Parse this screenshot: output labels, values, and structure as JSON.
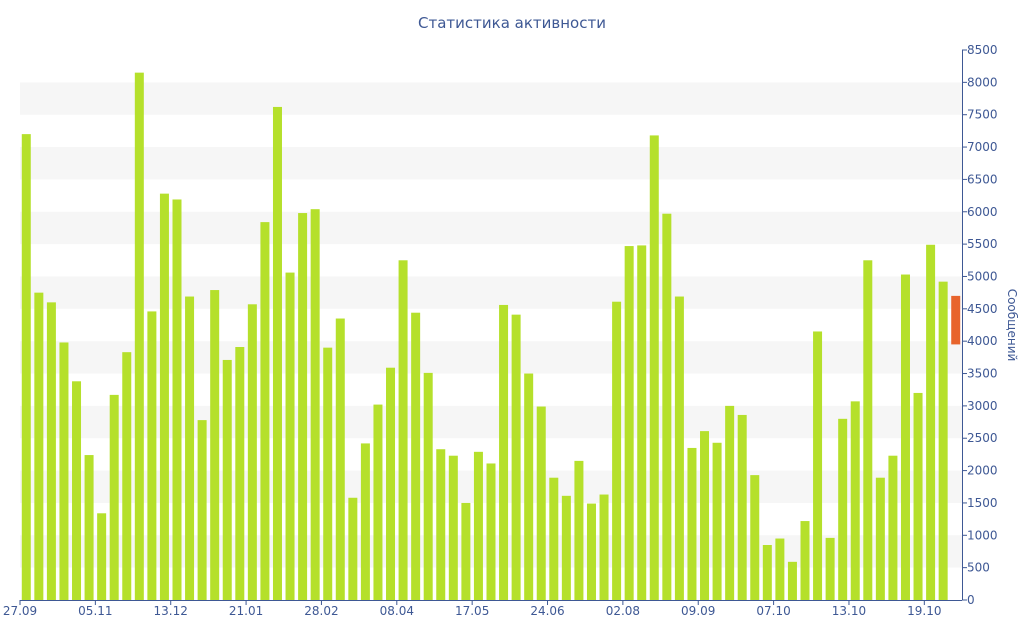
{
  "chart_data": {
    "type": "bar",
    "title": "Статистика активности",
    "ylabel": "Сообщений",
    "xlabel": "",
    "ylim": [
      0,
      8500
    ],
    "y_axis_side": "right",
    "y_ticks": [
      0,
      500,
      1000,
      1500,
      2000,
      2500,
      3000,
      3500,
      4000,
      4500,
      5000,
      5500,
      6000,
      6500,
      7000,
      7500,
      8000,
      8500
    ],
    "grid": "alternating horizontal bands",
    "x_tick_labels": [
      {
        "index": 0,
        "label": "27.09"
      },
      {
        "index": 6,
        "label": "05.11"
      },
      {
        "index": 12,
        "label": "13.12"
      },
      {
        "index": 18,
        "label": "21.01"
      },
      {
        "index": 24,
        "label": "28.02"
      },
      {
        "index": 30,
        "label": "08.04"
      },
      {
        "index": 36,
        "label": "17.05"
      },
      {
        "index": 42,
        "label": "24.06"
      },
      {
        "index": 48,
        "label": "02.08"
      },
      {
        "index": 54,
        "label": "09.09"
      },
      {
        "index": 60,
        "label": "07.10"
      },
      {
        "index": 66,
        "label": "13.10"
      },
      {
        "index": 72,
        "label": "19.10"
      }
    ],
    "values": [
      7200,
      4750,
      4600,
      3980,
      3380,
      2240,
      1340,
      3170,
      3830,
      8150,
      4460,
      6280,
      6190,
      4690,
      2780,
      4790,
      3710,
      3910,
      4570,
      5840,
      7620,
      5060,
      5980,
      6040,
      3900,
      4350,
      1580,
      2420,
      3020,
      3590,
      5250,
      4440,
      3510,
      2330,
      2230,
      1500,
      2290,
      2110,
      4560,
      4410,
      3500,
      2990,
      1890,
      1610,
      2150,
      1490,
      1630,
      4610,
      5470,
      5480,
      7180,
      5970,
      4690,
      2350,
      2610,
      2430,
      3000,
      2860,
      1930,
      850,
      950,
      590,
      1220,
      4150,
      960,
      2800,
      3070,
      5250,
      1890,
      2230,
      5030,
      3200,
      5490,
      4920
    ],
    "highlight": {
      "index": 74,
      "low": 3950,
      "high": 4700
    },
    "colors": {
      "bar": "#b5e02b",
      "highlight": "#e8642c",
      "text": "#3e5894",
      "band": "#f6f6f6",
      "axis": "#3e5894"
    }
  }
}
